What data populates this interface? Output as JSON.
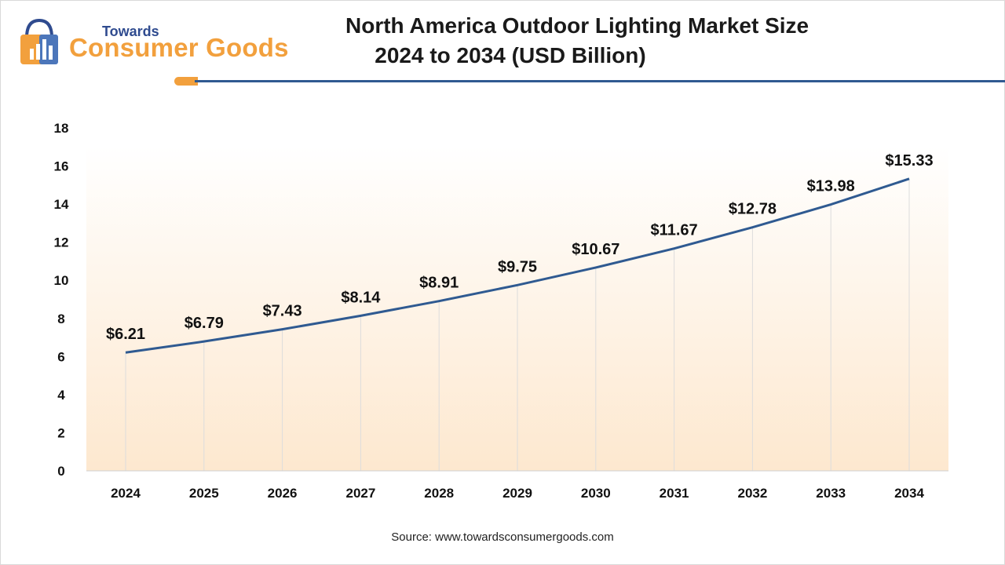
{
  "header": {
    "logo_top": "Towards",
    "logo_bottom": "Consumer Goods",
    "title_line1": "North America Outdoor Lighting Market Size",
    "title_line2": "2024 to 2034 (USD Billion)"
  },
  "colors": {
    "line": "#2f5a91",
    "accent": "#f2a03d",
    "logo_blue": "#2f4b8f"
  },
  "chart_data": {
    "type": "line",
    "title": "North America Outdoor Lighting Market Size 2024 to 2034 (USD Billion)",
    "xlabel": "",
    "ylabel": "",
    "categories": [
      "2024",
      "2025",
      "2026",
      "2027",
      "2028",
      "2029",
      "2030",
      "2031",
      "2032",
      "2033",
      "2034"
    ],
    "values": [
      6.21,
      6.79,
      7.43,
      8.14,
      8.91,
      9.75,
      10.67,
      11.67,
      12.78,
      13.98,
      15.33
    ],
    "data_labels": [
      "$6.21",
      "$6.79",
      "$7.43",
      "$8.14",
      "$8.91",
      "$9.75",
      "$10.67",
      "$11.67",
      "$12.78",
      "$13.98",
      "$15.33"
    ],
    "ylim": [
      0,
      18
    ],
    "yticks": [
      0,
      2,
      4,
      6,
      8,
      10,
      12,
      14,
      16,
      18
    ],
    "grid": "vertical"
  },
  "footer": {
    "source": "Source: www.towardsconsumergoods.com"
  }
}
